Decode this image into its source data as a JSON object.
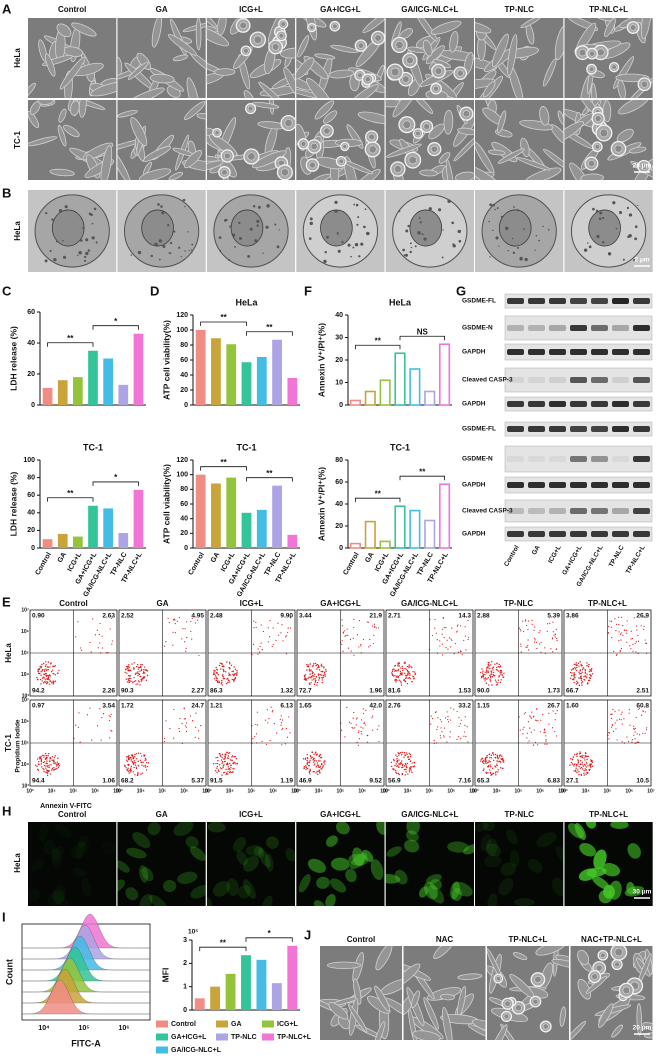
{
  "panel_letters": [
    "A",
    "B",
    "C",
    "D",
    "E",
    "F",
    "G",
    "H",
    "I",
    "J"
  ],
  "conditions": [
    "Control",
    "GA",
    "ICG+L",
    "GA+ICG+L",
    "GA/ICG-NLC+L",
    "TP-NLC",
    "TP-NLC+L"
  ],
  "colors": [
    "#f08c84",
    "#c8a43a",
    "#94c43c",
    "#34c49a",
    "#44bce4",
    "#aca4e4",
    "#f274d4"
  ],
  "panel_a": {
    "rows": [
      "HeLa",
      "TC-1"
    ],
    "scale_bar": "20 μm"
  },
  "panel_b": {
    "row": "HeLa",
    "scale_bar": "2 μm"
  },
  "chart_data": [
    {
      "type": "bar",
      "y_label": "LDH release (%)",
      "categories": [
        null,
        null,
        null,
        null,
        null,
        null,
        null
      ],
      "values": [
        11,
        16,
        18,
        35,
        30,
        13,
        46
      ],
      "ylim": [
        0,
        60
      ],
      "yticks": [
        0,
        20,
        40,
        60
      ],
      "style": "filled",
      "comparisons": [
        {
          "from": "Control",
          "to": "GA+ICG+L",
          "label": "**"
        },
        {
          "from": "GA+ICG+L",
          "to": "TP-NLC+L",
          "label": "*"
        }
      ]
    },
    {
      "type": "bar",
      "title": "TC-1",
      "y_label": "LDH release (%)",
      "categories": [
        "Control",
        "GA",
        "ICG+L",
        "GA+ICG+L",
        "GA/ICG-NLC+L",
        "TP-NLC",
        "TP-NLC+L"
      ],
      "values": [
        10,
        16,
        13,
        48,
        45,
        17,
        66
      ],
      "ylim": [
        0,
        100
      ],
      "yticks": [
        0,
        20,
        40,
        60,
        80,
        100
      ],
      "style": "filled",
      "comparisons": [
        {
          "from": "Control",
          "to": "GA+ICG+L",
          "label": "**"
        },
        {
          "from": "GA+ICG+L",
          "to": "TP-NLC+L",
          "label": "*"
        }
      ]
    },
    {
      "type": "bar",
      "title": "HeLa",
      "y_label": "ATP cell viability(%)",
      "categories": [
        null,
        null,
        null,
        null,
        null,
        null,
        null
      ],
      "values": [
        100,
        89,
        81,
        57,
        64,
        87,
        36
      ],
      "ylim": [
        0,
        120
      ],
      "yticks": [
        0,
        20,
        40,
        60,
        80,
        100,
        120
      ],
      "style": "filled",
      "comparisons": [
        {
          "from": "Control",
          "to": "GA+ICG+L",
          "label": "**"
        },
        {
          "from": "GA+ICG+L",
          "to": "TP-NLC+L",
          "label": "**"
        }
      ]
    },
    {
      "type": "bar",
      "title": "TC-1",
      "y_label": "ATP cell viability(%)",
      "categories": [
        "Control",
        "GA",
        "ICG+L",
        "GA+ICG+L",
        "GA/ICG-NLC+L",
        "TP-NLC",
        "TP-NLC+L"
      ],
      "values": [
        100,
        88,
        96,
        48,
        52,
        85,
        18
      ],
      "ylim": [
        0,
        120
      ],
      "yticks": [
        0,
        20,
        40,
        60,
        80,
        100,
        120
      ],
      "style": "filled",
      "comparisons": [
        {
          "from": "Control",
          "to": "GA+ICG+L",
          "label": "**"
        },
        {
          "from": "GA+ICG+L",
          "to": "TP-NLC+L",
          "label": "**"
        }
      ]
    },
    {
      "type": "bar",
      "title": "HeLa",
      "y_label": "Annexin V⁺/PI⁺(%)",
      "categories": [
        null,
        null,
        null,
        null,
        null,
        null,
        null
      ],
      "values": [
        2,
        6,
        11,
        23,
        16,
        6,
        27
      ],
      "ylim": [
        0,
        40
      ],
      "yticks": [
        0,
        10,
        20,
        30,
        40
      ],
      "style": "hollow",
      "comparisons": [
        {
          "from": "Control",
          "to": "GA+ICG+L",
          "label": "**"
        },
        {
          "from": "GA+ICG+L",
          "to": "TP-NLC+L",
          "label": "NS"
        }
      ]
    },
    {
      "type": "bar",
      "title": "TC-1",
      "y_label": "Annexin V⁺/PI⁺(%)",
      "categories": [
        "Control",
        "GA",
        "ICG+L",
        "GA+ICG+L",
        "GA/ICG-NLC+L",
        "TP-NLC",
        "TP-NLC+L"
      ],
      "values": [
        4,
        24,
        6,
        38,
        34,
        25,
        58
      ],
      "ylim": [
        0,
        80
      ],
      "yticks": [
        0,
        20,
        40,
        60,
        80
      ],
      "style": "hollow",
      "comparisons": [
        {
          "from": "Control",
          "to": "GA+ICG+L",
          "label": "**"
        },
        {
          "from": "GA+ICG+L",
          "to": "TP-NLC+L",
          "label": "**"
        }
      ]
    },
    {
      "type": "bar",
      "y_label": "MFI",
      "y_unit": "10⁵",
      "legend": "bottom",
      "categories": [
        "Control",
        "GA",
        "ICG+L",
        "GA+ICG+L",
        "GA/ICG-NLC+L",
        "TP-NLC",
        "TP-NLC+L"
      ],
      "values": [
        0.5,
        1.0,
        1.55,
        2.35,
        2.15,
        1.15,
        2.75
      ],
      "ylim": [
        0,
        3
      ],
      "yticks": [
        0,
        1,
        2,
        3
      ],
      "style": "filled",
      "comparisons": [
        {
          "from": "Control",
          "to": "GA+ICG+L",
          "label": "**"
        },
        {
          "from": "GA+ICG+L",
          "to": "TP-NLC+L",
          "label": "*"
        }
      ]
    }
  ],
  "panel_e": {
    "rows": [
      "HeLa",
      "TC-1"
    ],
    "y_label": "Propidium Iodide",
    "x_label": "Annexin V-FITC",
    "ticks": [
      "10³",
      "10⁴",
      "10⁵",
      "10⁶",
      "10⁷"
    ],
    "quadrants": [
      [
        [
          "0.90",
          "2.63",
          "94.2",
          "2.26"
        ],
        [
          "2.52",
          "4.95",
          "90.3",
          "2.27"
        ],
        [
          "2.48",
          "9.90",
          "86.3",
          "1.32"
        ],
        [
          "3.44",
          "21.9",
          "72.7",
          "1.96"
        ],
        [
          "2.71",
          "14.3",
          "81.6",
          "1.53"
        ],
        [
          "2.88",
          "5.39",
          "90.0",
          "1.73"
        ],
        [
          "3.86",
          "26.9",
          "66.7",
          "2.51"
        ]
      ],
      [
        [
          "0.97",
          "3.54",
          "94.4",
          "1.06"
        ],
        [
          "1.72",
          "24.7",
          "68.2",
          "5.37"
        ],
        [
          "1.21",
          "6.13",
          "91.5",
          "1.19"
        ],
        [
          "1.65",
          "42.0",
          "46.9",
          "9.52"
        ],
        [
          "2.76",
          "33.2",
          "56.9",
          "7.16"
        ],
        [
          "1.15",
          "26.7",
          "65.3",
          "6.83"
        ],
        [
          "1.60",
          "60.8",
          "27.1",
          "10.5"
        ]
      ]
    ]
  },
  "panel_g": {
    "blots": [
      [
        "GSDME-FL",
        "GSDME-N",
        "GAPDH",
        "Cleaved CASP-3",
        "GAPDH"
      ],
      [
        "GSDME-FL",
        "GSDME-N",
        "GAPDH",
        "Cleaved CASP-3",
        "GAPDH"
      ]
    ]
  },
  "panel_h": {
    "row": "HeLa",
    "scale_bar": "30 μm"
  },
  "panel_i": {
    "y_label": "Count",
    "x_label": "FITC-A",
    "ticks": [
      "10⁴",
      "10⁵",
      "10⁶"
    ]
  },
  "panel_j": {
    "columns": [
      "Control",
      "NAC",
      "TP-NLC+L",
      "NAC+TP-NLC+L"
    ],
    "scale_bar": "20 μm"
  }
}
